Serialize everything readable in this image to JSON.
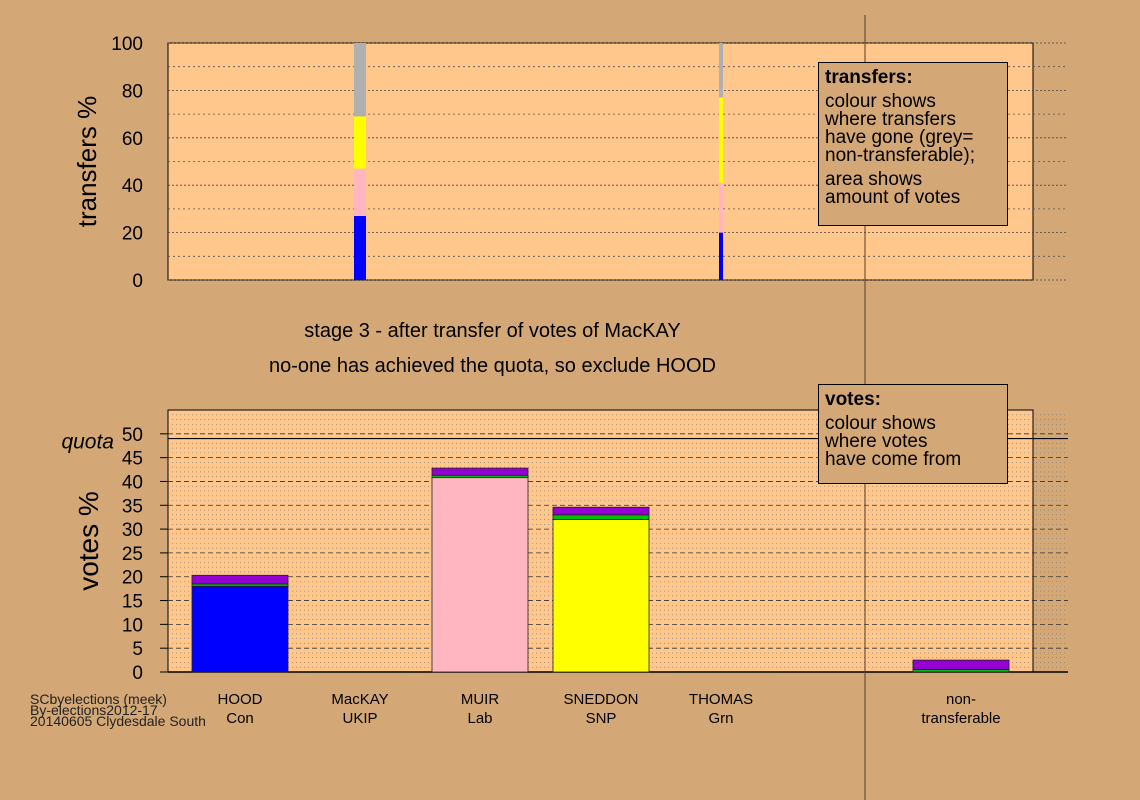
{
  "colors": {
    "background": "#d4a876",
    "plot_bg": "#ffc78c",
    "HOOD": "#0000ff",
    "MacKAY": "#800080",
    "MUIR": "#ffb6c1",
    "SNEDDON": "#ffff00",
    "THOMAS": "#00c000",
    "nontransferable": "#b0b0b0",
    "prior_transfer": "#9400d3"
  },
  "stage_title": "stage 3 - after transfer of votes of MacKAY",
  "stage_subtitle": "no-one has achieved the quota, so exclude HOOD",
  "transfer_legend": {
    "title": "transfers:",
    "line1": "colour shows",
    "line2": "where transfers",
    "line3": "have gone (grey=",
    "line4": "non-transferable);",
    "line5": "area shows",
    "line6": "amount of votes"
  },
  "votes_legend": {
    "title": "votes:",
    "line1": "colour shows",
    "line2": "where votes",
    "line3": "have come from"
  },
  "footer": {
    "line1": "SCbyelections (meek)",
    "line2": "By-elections2012-17",
    "line3": "20140605 Clydesdale South"
  },
  "chart_data": [
    {
      "type": "bar",
      "ylabel": "transfers %",
      "ylim": [
        0,
        100
      ],
      "yticks": [
        0,
        20,
        40,
        60,
        80,
        100
      ],
      "grid": true,
      "legend": "top-right",
      "columns": [
        {
          "segments": [
            {
              "to": "HOOD",
              "value": 27
            },
            {
              "to": "MUIR",
              "value": 20
            },
            {
              "to": "SNEDDON",
              "value": 22
            },
            {
              "to": "non-transferable",
              "value": 31
            }
          ]
        },
        {
          "segments": [
            {
              "to": "HOOD",
              "value": 20
            },
            {
              "to": "MUIR",
              "value": 21
            },
            {
              "to": "SNEDDON",
              "value": 36
            },
            {
              "to": "non-transferable",
              "value": 23
            }
          ]
        }
      ]
    },
    {
      "type": "bar",
      "ylabel": "votes %",
      "ylim": [
        0,
        55
      ],
      "yticks": [
        0,
        5,
        10,
        15,
        20,
        25,
        30,
        35,
        40,
        45,
        50
      ],
      "quota": 49,
      "quota_label": "quota",
      "grid": true,
      "legend": "top-right",
      "categories": [
        {
          "name": "HOOD",
          "party": "Con"
        },
        {
          "name": "MacKAY",
          "party": "UKIP"
        },
        {
          "name": "MUIR",
          "party": "Lab"
        },
        {
          "name": "SNEDDON",
          "party": "SNP"
        },
        {
          "name": "THOMAS",
          "party": "Grn"
        },
        {
          "name": "non-",
          "party": "transferable"
        }
      ],
      "bars": [
        {
          "base": 18.0,
          "base_from": "HOOD",
          "thomas": 0.5,
          "mackay": 1.8
        },
        {
          "base": 0,
          "base_from": "MacKAY",
          "thomas": 0,
          "mackay": 0
        },
        {
          "base": 40.8,
          "base_from": "MUIR",
          "thomas": 0.5,
          "mackay": 1.5
        },
        {
          "base": 32.0,
          "base_from": "SNEDDON",
          "thomas": 1.0,
          "mackay": 1.6
        },
        {
          "base": 0,
          "base_from": "THOMAS",
          "thomas": 0,
          "mackay": 0
        },
        {
          "base": 0,
          "base_from": "non-transferable",
          "thomas": 0.5,
          "mackay": 2.0
        }
      ]
    }
  ]
}
